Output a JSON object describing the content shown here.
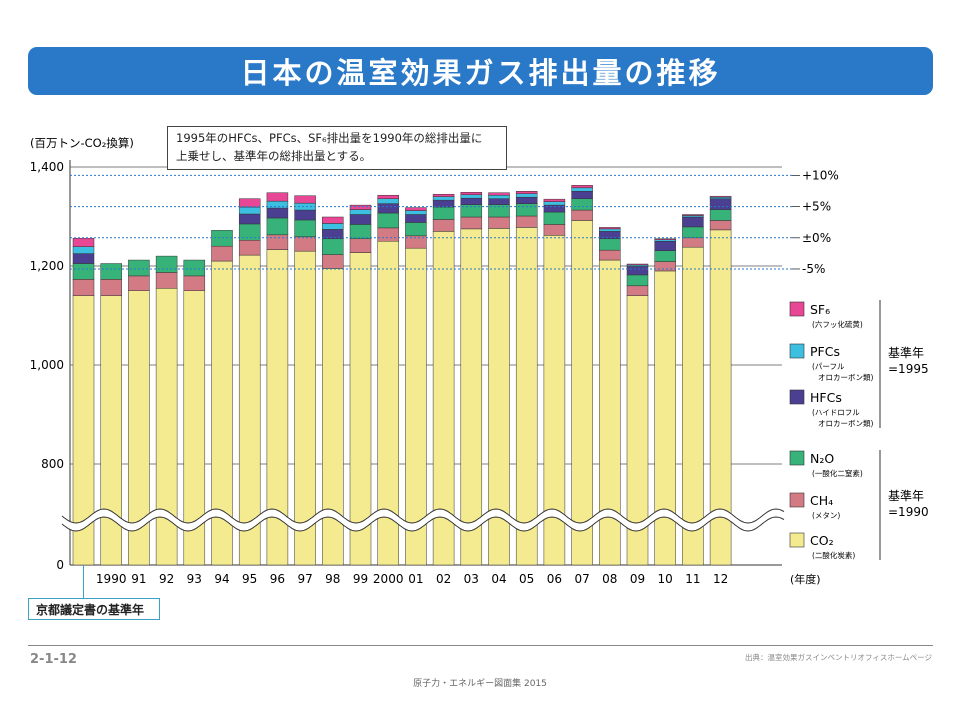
{
  "title": "日本の温室効果ガス排出量の推移",
  "note_line1": "1995年のHFCs、PFCs、SF₆排出量を1990年の総排出量に",
  "note_line2": "上乗せし、基準年の総排出量とする。",
  "kyoto_label": "京都議定書の基準年",
  "page_number": "2-1-12",
  "source": "出典：温室効果ガスインベントリオフィスホームページ",
  "footer": "原子力・エネルギー図面集 2015",
  "colors": {
    "CO2": "#f4ea8f",
    "CH4": "#d37b85",
    "N2O": "#37b37a",
    "HFCs": "#4a3f91",
    "PFCs": "#3cbfe0",
    "SF6": "#e84795"
  },
  "chart_data": {
    "type": "bar",
    "stacked": true,
    "ylabel": "(百万トン-CO₂換算)",
    "xlabel": "(年度)",
    "ylim": [
      0,
      1400
    ],
    "y_ticks": [
      "0",
      "800",
      "1,000",
      "1,200",
      "1,400"
    ],
    "y_tick_values": [
      0,
      800,
      1000,
      1200,
      1400
    ],
    "axis_break": true,
    "x_labels": [
      "",
      "1990",
      "91",
      "92",
      "93",
      "94",
      "95",
      "96",
      "97",
      "98",
      "99",
      "2000",
      "01",
      "02",
      "03",
      "04",
      "05",
      "06",
      "07",
      "08",
      "09",
      "10",
      "11",
      "12"
    ],
    "categories": [
      "基準年",
      "1990",
      "1991",
      "1992",
      "1993",
      "1994",
      "1995",
      "1996",
      "1997",
      "1998",
      "1999",
      "2000",
      "2001",
      "2002",
      "2003",
      "2004",
      "2005",
      "2006",
      "2007",
      "2008",
      "2009",
      "2010",
      "2011",
      "2012"
    ],
    "series": [
      {
        "key": "CO2",
        "name": "CO₂",
        "sub": "(二酸化炭素)",
        "values": [
          1140,
          1140,
          1150,
          1155,
          1150,
          1210,
          1222,
          1233,
          1230,
          1195,
          1227,
          1250,
          1236,
          1270,
          1275,
          1276,
          1278,
          1262,
          1292,
          1212,
          1140,
          1190,
          1238,
          1273
        ]
      },
      {
        "key": "CH4",
        "name": "CH₄",
        "sub": "(メタン)",
        "values": [
          33,
          33,
          30,
          32,
          30,
          30,
          30,
          30,
          29,
          28,
          28,
          27,
          25,
          24,
          24,
          23,
          23,
          22,
          21,
          20,
          20,
          19,
          19,
          19
        ]
      },
      {
        "key": "N2O",
        "name": "N₂O",
        "sub": "(一酸化二窒素)",
        "values": [
          32,
          32,
          32,
          33,
          32,
          32,
          33,
          34,
          34,
          32,
          29,
          30,
          27,
          25,
          25,
          25,
          25,
          25,
          23,
          23,
          22,
          22,
          22,
          22
        ]
      },
      {
        "key": "HFCs",
        "name": "HFCs",
        "sub": "(ハイドロフルオロカーボン類)",
        "values": [
          20,
          0,
          0,
          0,
          0,
          0,
          20,
          20,
          20,
          19,
          20,
          19,
          16,
          14,
          13,
          12,
          13,
          14,
          15,
          15,
          17,
          19,
          20,
          22
        ]
      },
      {
        "key": "PFCs",
        "name": "PFCs",
        "sub": "(パーフルオロカーボン類)",
        "values": [
          14,
          0,
          0,
          0,
          0,
          0,
          14,
          14,
          14,
          12,
          10,
          10,
          8,
          7,
          7,
          7,
          7,
          7,
          7,
          5,
          3,
          3,
          3,
          3
        ]
      },
      {
        "key": "SF6",
        "name": "SF₆",
        "sub": "(六フッ化硫黄)",
        "values": [
          17,
          0,
          0,
          0,
          0,
          0,
          17,
          17,
          15,
          13,
          9,
          7,
          6,
          5,
          5,
          5,
          5,
          5,
          5,
          3,
          2,
          2,
          2,
          2
        ]
      }
    ],
    "reference_lines": [
      {
        "label": "+10%",
        "value": 1383
      },
      {
        "label": "+5%",
        "value": 1320
      },
      {
        "label": "±0%",
        "value": 1257
      },
      {
        "label": "-5%",
        "value": 1194
      }
    ],
    "legend_groups": [
      {
        "label_line1": "基準年",
        "label_line2": "=1995",
        "keys": [
          "SF6",
          "PFCs",
          "HFCs"
        ]
      },
      {
        "label_line1": "基準年",
        "label_line2": "=1990",
        "keys": [
          "N2O",
          "CH4",
          "CO2"
        ]
      }
    ],
    "legend_position": "right"
  }
}
